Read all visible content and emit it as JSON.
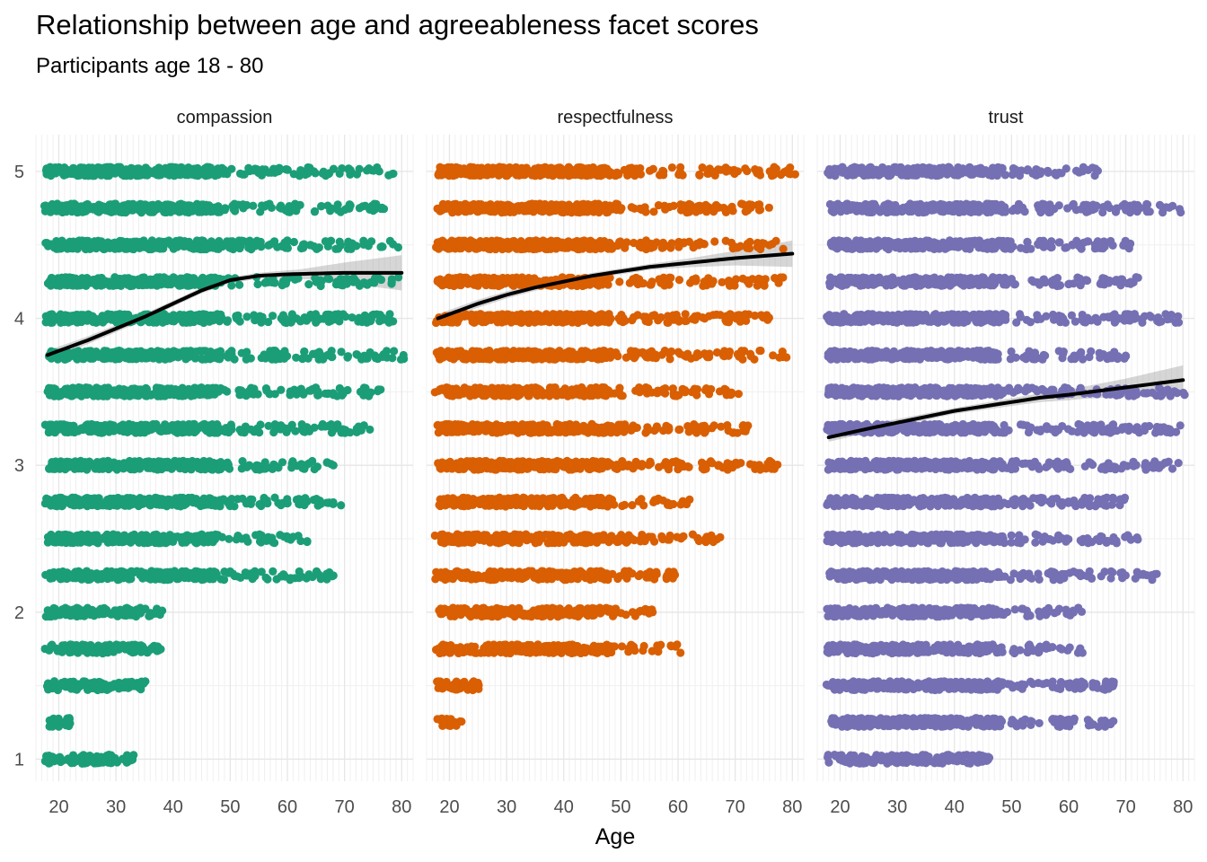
{
  "chart_data": {
    "type": "scatter",
    "title": "Relationship between age and agreeableness facet scores",
    "subtitle": "Participants age 18 - 80",
    "xlabel": "Age",
    "ylabel": "",
    "xlim": [
      16,
      82
    ],
    "ylim": [
      0.85,
      5.25
    ],
    "x_ticks": [
      20,
      30,
      40,
      50,
      60,
      70,
      80
    ],
    "y_ticks": [
      1,
      2,
      3,
      4,
      5
    ],
    "grid": true,
    "legend": "none",
    "facets": [
      {
        "name": "compassion",
        "color": "#1B9E77",
        "point_ranges": [
          [
            5.0,
            18,
            79
          ],
          [
            4.75,
            18,
            77
          ],
          [
            4.5,
            18,
            79
          ],
          [
            4.25,
            18,
            79
          ],
          [
            4.0,
            18,
            79
          ],
          [
            3.75,
            18,
            80
          ],
          [
            3.5,
            18,
            76
          ],
          [
            3.25,
            18,
            74
          ],
          [
            3.0,
            18,
            68
          ],
          [
            2.75,
            18,
            69
          ],
          [
            2.5,
            18,
            63
          ],
          [
            2.25,
            18,
            68
          ],
          [
            2.0,
            18,
            38
          ],
          [
            1.75,
            18,
            38
          ],
          [
            1.5,
            18,
            35
          ],
          [
            1.25,
            18,
            22
          ],
          [
            1.0,
            18,
            33
          ]
        ],
        "smooth": [
          [
            18,
            3.75
          ],
          [
            25,
            3.85
          ],
          [
            30,
            3.93
          ],
          [
            35,
            4.01
          ],
          [
            40,
            4.1
          ],
          [
            45,
            4.19
          ],
          [
            50,
            4.26
          ],
          [
            55,
            4.29
          ],
          [
            60,
            4.3
          ],
          [
            70,
            4.31
          ],
          [
            80,
            4.31
          ]
        ],
        "ci_halfwidth": [
          [
            18,
            0.03
          ],
          [
            40,
            0.02
          ],
          [
            55,
            0.02
          ],
          [
            62,
            0.03
          ],
          [
            70,
            0.07
          ],
          [
            80,
            0.12
          ]
        ]
      },
      {
        "name": "respectfulness",
        "color": "#D95F02",
        "point_ranges": [
          [
            5.0,
            18,
            80
          ],
          [
            4.75,
            18,
            76
          ],
          [
            4.5,
            18,
            78
          ],
          [
            4.25,
            18,
            78
          ],
          [
            4.0,
            18,
            76
          ],
          [
            3.75,
            18,
            79
          ],
          [
            3.5,
            18,
            70
          ],
          [
            3.25,
            18,
            72
          ],
          [
            3.0,
            18,
            77
          ],
          [
            2.75,
            18,
            62
          ],
          [
            2.5,
            18,
            67
          ],
          [
            2.25,
            18,
            59
          ],
          [
            2.0,
            18,
            55
          ],
          [
            1.75,
            18,
            60
          ],
          [
            1.5,
            18,
            25
          ],
          [
            1.25,
            18,
            22
          ]
        ],
        "smooth": [
          [
            18,
            4.0
          ],
          [
            25,
            4.1
          ],
          [
            30,
            4.16
          ],
          [
            35,
            4.21
          ],
          [
            40,
            4.25
          ],
          [
            45,
            4.29
          ],
          [
            50,
            4.32
          ],
          [
            55,
            4.35
          ],
          [
            60,
            4.37
          ],
          [
            70,
            4.41
          ],
          [
            80,
            4.44
          ]
        ],
        "ci_halfwidth": [
          [
            18,
            0.03
          ],
          [
            40,
            0.02
          ],
          [
            55,
            0.02
          ],
          [
            62,
            0.03
          ],
          [
            70,
            0.05
          ],
          [
            80,
            0.09
          ]
        ]
      },
      {
        "name": "trust",
        "color": "#7570B3",
        "point_ranges": [
          [
            5.0,
            18,
            65
          ],
          [
            4.75,
            18,
            79
          ],
          [
            4.5,
            18,
            71
          ],
          [
            4.25,
            18,
            72
          ],
          [
            4.0,
            18,
            79
          ],
          [
            3.75,
            18,
            70
          ],
          [
            3.5,
            18,
            80
          ],
          [
            3.25,
            18,
            79
          ],
          [
            3.0,
            18,
            79
          ],
          [
            2.75,
            18,
            70
          ],
          [
            2.5,
            18,
            72
          ],
          [
            2.25,
            18,
            75
          ],
          [
            2.0,
            18,
            62
          ],
          [
            1.75,
            18,
            62
          ],
          [
            1.5,
            18,
            68
          ],
          [
            1.25,
            18,
            68
          ],
          [
            1.0,
            18,
            46
          ]
        ],
        "smooth": [
          [
            18,
            3.19
          ],
          [
            25,
            3.25
          ],
          [
            30,
            3.29
          ],
          [
            35,
            3.33
          ],
          [
            40,
            3.37
          ],
          [
            45,
            3.4
          ],
          [
            50,
            3.43
          ],
          [
            55,
            3.46
          ],
          [
            60,
            3.48
          ],
          [
            70,
            3.53
          ],
          [
            80,
            3.58
          ]
        ],
        "ci_halfwidth": [
          [
            18,
            0.03
          ],
          [
            40,
            0.02
          ],
          [
            55,
            0.03
          ],
          [
            62,
            0.04
          ],
          [
            70,
            0.06
          ],
          [
            80,
            0.1
          ]
        ]
      }
    ]
  }
}
